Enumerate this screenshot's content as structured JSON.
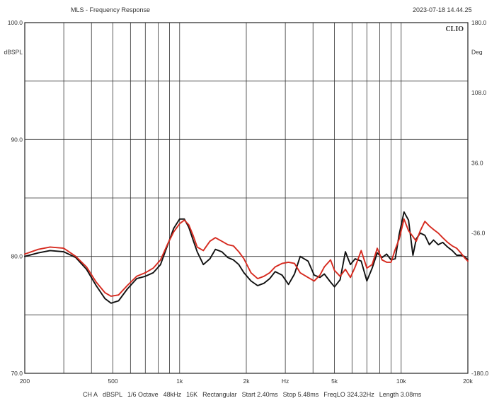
{
  "window": {
    "title": "MLS - Frequency Response",
    "datestamp": "2023-07-18 14.44.25"
  },
  "brand": "CLIO",
  "footer": {
    "items": [
      "CH A",
      "dBSPL",
      "1/6 Octave",
      "48kHz",
      "16K",
      "Rectangular",
      "Start 2.40ms",
      "Stop 5.48ms",
      "FreqLO 324.32Hz",
      "Length 3.08ms"
    ]
  },
  "chart_data": {
    "type": "line",
    "xscale": "log",
    "xlim": [
      200,
      20000
    ],
    "xlabel": "Hz",
    "xticks": [
      {
        "v": 200,
        "label": "200"
      },
      {
        "v": 500,
        "label": "500"
      },
      {
        "v": 1000,
        "label": "1k"
      },
      {
        "v": 2000,
        "label": "2k"
      },
      {
        "v": 5000,
        "label": "5k"
      },
      {
        "v": 10000,
        "label": "10k"
      },
      {
        "v": 20000,
        "label": "20k"
      }
    ],
    "xlabel_at": 3000,
    "ylim": [
      70,
      100
    ],
    "ylabel": "dBSPL",
    "ylabel_at": 97.5,
    "yticks": [
      {
        "v": 100,
        "label": "100.0"
      },
      {
        "v": 90,
        "label": "90.0"
      },
      {
        "v": 80,
        "label": "80.0"
      },
      {
        "v": 70,
        "label": "70.0"
      }
    ],
    "y2lim": [
      -180,
      180
    ],
    "y2label": "Deg",
    "y2label_at": 150,
    "y2ticks": [
      {
        "v": 180,
        "label": "180.0"
      },
      {
        "v": 108,
        "label": "108.0"
      },
      {
        "v": 36,
        "label": "36.0"
      },
      {
        "v": -36,
        "label": "-36.0"
      },
      {
        "v": -180,
        "label": "-180.0"
      }
    ],
    "grid": true,
    "series": [
      {
        "color": "#111111",
        "x": [
          200,
          230,
          260,
          300,
          340,
          380,
          420,
          460,
          490,
          530,
          580,
          640,
          700,
          760,
          820,
          880,
          940,
          1000,
          1050,
          1100,
          1150,
          1200,
          1280,
          1370,
          1450,
          1550,
          1650,
          1750,
          1850,
          1950,
          2100,
          2250,
          2400,
          2550,
          2700,
          2900,
          3100,
          3300,
          3500,
          3800,
          4050,
          4300,
          4500,
          4800,
          5000,
          5300,
          5600,
          5900,
          6200,
          6600,
          7000,
          7400,
          7800,
          8200,
          8600,
          9000,
          9400,
          9800,
          10300,
          10800,
          11300,
          11700,
          12200,
          12800,
          13400,
          14000,
          14700,
          15400,
          16200,
          17000,
          17800,
          18600,
          19300,
          20000
        ],
        "y": [
          80.0,
          80.3,
          80.5,
          80.4,
          79.9,
          78.9,
          77.5,
          76.4,
          76.0,
          76.2,
          77.2,
          78.1,
          78.3,
          78.6,
          79.3,
          80.9,
          82.4,
          83.2,
          83.2,
          82.5,
          81.4,
          80.4,
          79.3,
          79.8,
          80.6,
          80.4,
          79.9,
          79.7,
          79.3,
          78.6,
          77.9,
          77.5,
          77.7,
          78.1,
          78.7,
          78.4,
          77.6,
          78.5,
          80.0,
          79.6,
          78.4,
          78.2,
          78.5,
          77.8,
          77.4,
          78.0,
          80.4,
          79.3,
          79.8,
          79.6,
          77.9,
          79.0,
          80.3,
          79.9,
          80.2,
          79.7,
          79.8,
          81.9,
          83.8,
          83.1,
          80.1,
          81.5,
          82.0,
          81.8,
          81.0,
          81.4,
          81.0,
          81.2,
          80.8,
          80.5,
          80.1,
          80.1,
          80.0,
          79.7
        ]
      },
      {
        "color": "#d62a1f",
        "x": [
          200,
          230,
          260,
          300,
          340,
          380,
          420,
          460,
          490,
          530,
          580,
          640,
          700,
          760,
          820,
          880,
          940,
          1000,
          1050,
          1100,
          1150,
          1200,
          1280,
          1370,
          1450,
          1550,
          1650,
          1750,
          1850,
          1950,
          2100,
          2250,
          2400,
          2550,
          2700,
          2900,
          3100,
          3300,
          3500,
          3800,
          4050,
          4300,
          4500,
          4800,
          5000,
          5300,
          5600,
          5900,
          6200,
          6600,
          7000,
          7400,
          7800,
          8200,
          8600,
          9000,
          9400,
          9800,
          10300,
          10800,
          11300,
          11700,
          12200,
          12800,
          13400,
          14000,
          14700,
          15400,
          16200,
          17000,
          17800,
          18600,
          19300,
          20000
        ],
        "y": [
          80.2,
          80.6,
          80.8,
          80.7,
          80.0,
          79.1,
          77.8,
          76.9,
          76.6,
          76.7,
          77.5,
          78.3,
          78.6,
          79.0,
          79.7,
          81.0,
          82.1,
          82.8,
          83.1,
          82.7,
          81.8,
          80.8,
          80.5,
          81.3,
          81.6,
          81.3,
          81.0,
          80.9,
          80.4,
          79.8,
          78.6,
          78.1,
          78.3,
          78.6,
          79.1,
          79.4,
          79.5,
          79.4,
          78.6,
          78.2,
          77.9,
          78.4,
          79.1,
          79.7,
          78.8,
          78.3,
          78.9,
          78.2,
          79.1,
          80.5,
          79.0,
          79.3,
          80.7,
          79.7,
          79.5,
          79.5,
          80.6,
          81.5,
          83.2,
          82.2,
          81.7,
          81.3,
          82.2,
          83.0,
          82.6,
          82.3,
          82.0,
          81.6,
          81.2,
          80.9,
          80.7,
          80.3,
          79.9,
          79.6
        ]
      }
    ]
  }
}
